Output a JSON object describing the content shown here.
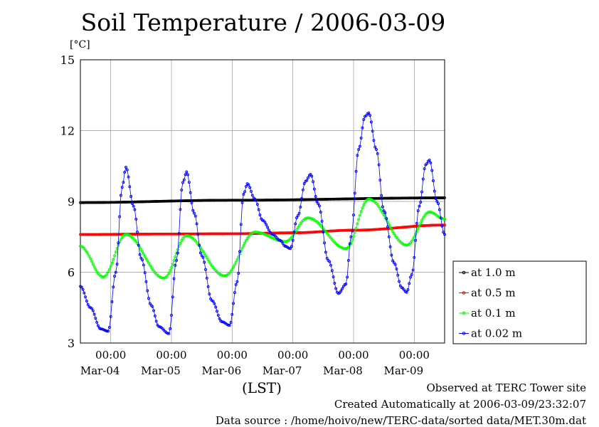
{
  "title": "Soil Temperature / 2006-03-09",
  "y_unit_label": "[°C]",
  "x_unit_label": "(LST)",
  "footer": {
    "line1": "Observed at TERC Tower site",
    "line2": "Created Automatically at 2006-03-09/23:32:07",
    "line3": "Data source : /home/hoivo/new/TERC-data/sorted  data/MET.30m.dat"
  },
  "chart_data": {
    "type": "line",
    "title": "Soil Temperature / 2006-03-09",
    "ylabel": "[°C]",
    "xlabel": "(LST)",
    "ylim": [
      3,
      15
    ],
    "xlim": [
      "2006-03-03T12:00",
      "2006-03-09T12:00"
    ],
    "grid": true,
    "legend_position": "right",
    "y_ticks": [
      "3",
      "6",
      "9",
      "12",
      "15"
    ],
    "x_ticks": [
      {
        "time": "00:00",
        "date": "Mar-04",
        "t": "2006-03-04T00:00"
      },
      {
        "time": "00:00",
        "date": "Mar-05",
        "t": "2006-03-05T00:00"
      },
      {
        "time": "00:00",
        "date": "Mar-06",
        "t": "2006-03-06T00:00"
      },
      {
        "time": "00:00",
        "date": "Mar-07",
        "t": "2006-03-07T00:00"
      },
      {
        "time": "00:00",
        "date": "Mar-08",
        "t": "2006-03-08T00:00"
      },
      {
        "time": "00:00",
        "date": "Mar-09",
        "t": "2006-03-09T00:00"
      }
    ],
    "series": [
      {
        "name": "at 1.0 m",
        "color": "#000000",
        "x": [
          "2006-03-03T12:00",
          "2006-03-06T00:00",
          "2006-03-09T12:00"
        ],
        "values": [
          8.95,
          9.05,
          9.15
        ]
      },
      {
        "name": "at 0.5 m",
        "color": "#ff0000",
        "x": [
          "2006-03-03T12:00",
          "2006-03-05T00:00",
          "2006-03-06T00:00",
          "2006-03-07T00:00",
          "2006-03-08T00:00",
          "2006-03-09T12:00"
        ],
        "values": [
          7.6,
          7.62,
          7.63,
          7.67,
          7.78,
          8.0
        ]
      },
      {
        "name": "at 0.1 m",
        "color": "#00ff00",
        "x": [
          "2006-03-03T12:00",
          "2006-03-03T21:00",
          "2006-03-04T06:00",
          "2006-03-04T21:00",
          "2006-03-05T06:00",
          "2006-03-05T21:00",
          "2006-03-06T09:00",
          "2006-03-06T21:00",
          "2006-03-07T06:00",
          "2006-03-07T21:00",
          "2006-03-08T06:00",
          "2006-03-08T21:00",
          "2006-03-09T06:00",
          "2006-03-09T12:00"
        ],
        "values": [
          7.1,
          5.8,
          7.6,
          5.75,
          7.55,
          5.85,
          7.7,
          7.3,
          8.3,
          7.0,
          9.1,
          7.15,
          8.55,
          8.25
        ]
      },
      {
        "name": "at 0.02 m",
        "color": "#0000ff",
        "x": [
          "2006-03-03T12:00",
          "2006-03-03T16:00",
          "2006-03-03T20:00",
          "2006-03-03T23:00",
          "2006-03-04T02:00",
          "2006-03-04T04:30",
          "2006-03-04T06:00",
          "2006-03-04T09:00",
          "2006-03-04T12:00",
          "2006-03-04T16:00",
          "2006-03-04T19:00",
          "2006-03-04T23:00",
          "2006-03-05T02:00",
          "2006-03-05T04:30",
          "2006-03-05T06:00",
          "2006-03-05T09:00",
          "2006-03-05T12:00",
          "2006-03-05T16:00",
          "2006-03-05T20:00",
          "2006-03-05T23:00",
          "2006-03-06T02:00",
          "2006-03-06T04:30",
          "2006-03-06T06:00",
          "2006-03-06T09:00",
          "2006-03-06T12:00",
          "2006-03-06T16:00",
          "2006-03-06T19:00",
          "2006-03-06T21:00",
          "2006-03-06T23:00",
          "2006-03-07T02:00",
          "2006-03-07T05:00",
          "2006-03-07T07:00",
          "2006-03-07T10:00",
          "2006-03-07T14:00",
          "2006-03-07T18:00",
          "2006-03-07T21:00",
          "2006-03-07T23:00",
          "2006-03-08T02:00",
          "2006-03-08T04:30",
          "2006-03-08T06:00",
          "2006-03-08T09:00",
          "2006-03-08T12:00",
          "2006-03-08T16:00",
          "2006-03-08T19:00",
          "2006-03-08T21:00",
          "2006-03-08T23:00",
          "2006-03-09T02:00",
          "2006-03-09T04:30",
          "2006-03-09T06:00",
          "2006-03-09T09:00",
          "2006-03-09T12:00"
        ],
        "values": [
          5.4,
          4.5,
          3.6,
          3.5,
          6.0,
          9.6,
          10.45,
          8.8,
          6.6,
          4.6,
          3.7,
          3.4,
          6.5,
          9.8,
          10.25,
          8.5,
          6.7,
          4.8,
          3.9,
          3.75,
          5.6,
          9.3,
          9.75,
          9.1,
          8.2,
          7.6,
          7.35,
          7.1,
          7.0,
          8.4,
          9.85,
          10.15,
          8.9,
          6.5,
          5.1,
          5.5,
          7.5,
          11.2,
          12.6,
          12.75,
          11.2,
          8.6,
          6.4,
          5.35,
          5.15,
          5.9,
          8.8,
          10.55,
          10.75,
          9.0,
          7.6
        ]
      }
    ]
  }
}
